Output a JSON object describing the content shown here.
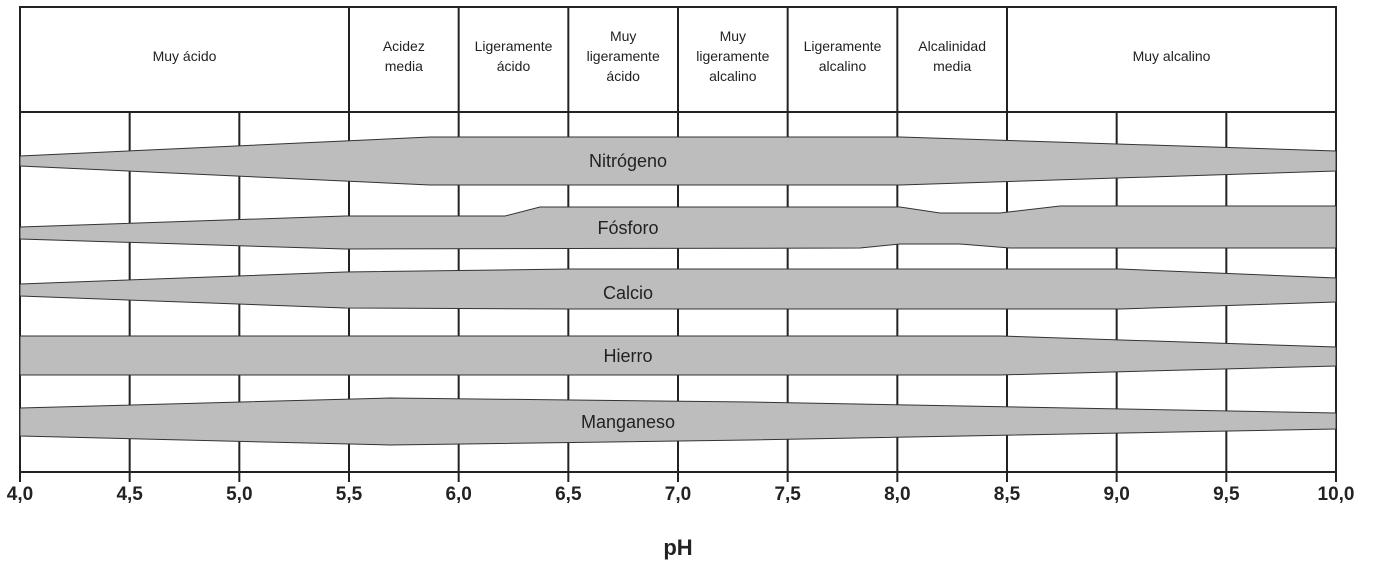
{
  "chart_data": {
    "type": "band-diagram",
    "xlabel": "pH",
    "xlim": [
      4,
      10
    ],
    "xticks": [
      {
        "value": 4,
        "label": "4,0"
      },
      {
        "value": 4.5,
        "label": "4,5"
      },
      {
        "value": 5,
        "label": "5,0"
      },
      {
        "value": 5.5,
        "label": "5,5"
      },
      {
        "value": 6,
        "label": "6,0"
      },
      {
        "value": 6.5,
        "label": "6,5"
      },
      {
        "value": 7,
        "label": "7,0"
      },
      {
        "value": 7.5,
        "label": "7,5"
      },
      {
        "value": 8,
        "label": "8,0"
      },
      {
        "value": 8.5,
        "label": "8,5"
      },
      {
        "value": 9,
        "label": "9,0"
      },
      {
        "value": 9.5,
        "label": "9,5"
      },
      {
        "value": 10,
        "label": "10,0"
      }
    ],
    "zones": [
      {
        "lines": [
          "Muy ácido"
        ],
        "from": 4,
        "to": 5.5
      },
      {
        "lines": [
          "Acidez",
          "media"
        ],
        "from": 5.5,
        "to": 6
      },
      {
        "lines": [
          "Ligeramente",
          "ácido"
        ],
        "from": 6,
        "to": 6.5
      },
      {
        "lines": [
          "Muy",
          "ligeramente",
          "ácido"
        ],
        "from": 6.5,
        "to": 7
      },
      {
        "lines": [
          "Muy",
          "ligeramente",
          "alcalino"
        ],
        "from": 7,
        "to": 7.5
      },
      {
        "lines": [
          "Ligeramente",
          "alcalino"
        ],
        "from": 7.5,
        "to": 8
      },
      {
        "lines": [
          "Alcalinidad",
          "media"
        ],
        "from": 8,
        "to": 8.5
      },
      {
        "lines": [
          "Muy alcalino"
        ],
        "from": 8.5,
        "to": 10
      }
    ],
    "bands": [
      "Nitrógeno",
      "Fósforo",
      "Calcio",
      "Hierro",
      "Manganeso"
    ]
  }
}
